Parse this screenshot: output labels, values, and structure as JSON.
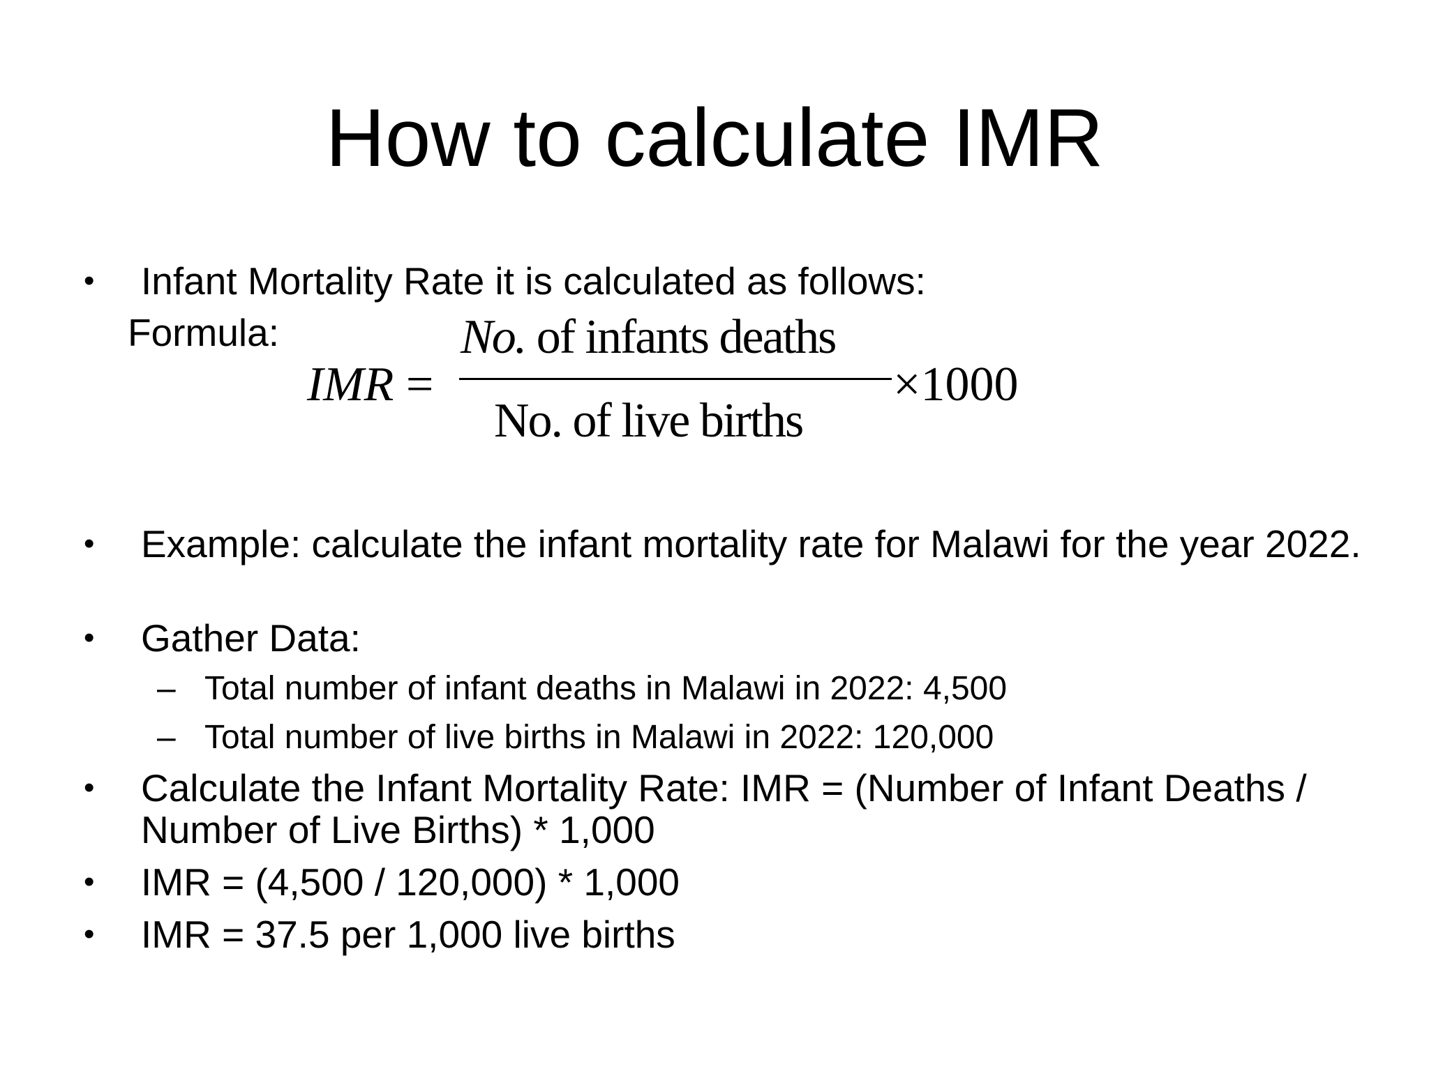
{
  "slide": {
    "title": "How to calculate IMR",
    "bullet_symbol": "•",
    "dash_symbol": "–",
    "intro": "Infant Mortality Rate it is calculated as follows:",
    "formula_label": "Formula:",
    "formula": {
      "lhs_var": "IMR",
      "equals": "=",
      "numerator_var": "No.",
      "numerator_text": " of infants  deaths",
      "denominator": "No. of  live  births",
      "multiplier": "×1000"
    },
    "example": "Example:  calculate the infant mortality rate for Malawi for the year 2022.",
    "gather": "Gather Data:",
    "data_points": [
      "Total number of infant deaths in Malawi in 2022: 4,500",
      "Total number of live births in Malawi in 2022: 120,000"
    ],
    "calculate": "Calculate the Infant Mortality Rate: IMR = (Number of Infant Deaths / Number of Live Births) * 1,000",
    "substitution": "IMR = (4,500 / 120,000) * 1,000",
    "result": "IMR = 37.5 per 1,000 live births"
  }
}
